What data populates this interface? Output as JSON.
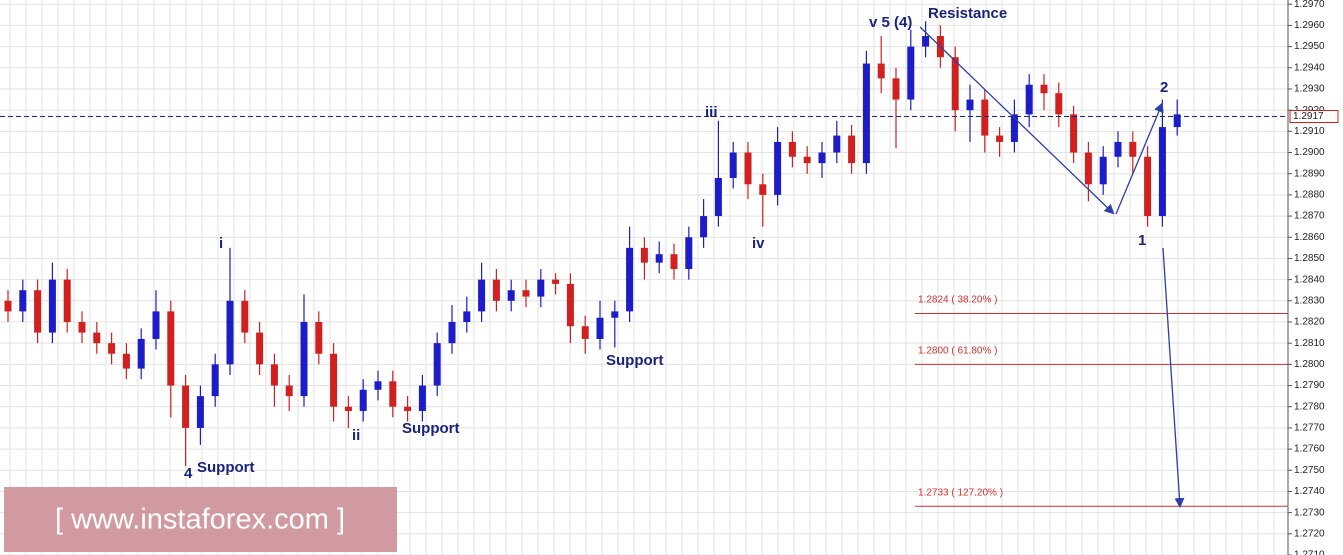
{
  "chart_data": {
    "type": "candlestick",
    "open": [
      1.283,
      1.2825,
      1.2835,
      1.2815,
      1.284,
      1.282,
      1.2815,
      1.281,
      1.2805,
      1.2798,
      1.2812,
      1.2825,
      1.279,
      1.277,
      1.2785,
      1.28,
      1.283,
      1.2815,
      1.28,
      1.279,
      1.2785,
      1.282,
      1.2805,
      1.278,
      1.2778,
      1.2788,
      1.2792,
      1.278,
      1.2778,
      1.279,
      1.281,
      1.282,
      1.2825,
      1.284,
      1.283,
      1.2835,
      1.2832,
      1.284,
      1.2838,
      1.2818,
      1.2812,
      1.2822,
      1.2825,
      1.2855,
      1.2848,
      1.2852,
      1.2845,
      1.286,
      1.287,
      1.2888,
      1.29,
      1.2885,
      1.288,
      1.2905,
      1.2898,
      1.2895,
      1.29,
      1.2908,
      1.2895,
      1.2942,
      1.2935,
      1.2925,
      1.295,
      1.2955,
      1.2945,
      1.292,
      1.2925,
      1.2908,
      1.2905,
      1.2918,
      1.2932,
      1.2928,
      1.2918,
      1.29,
      1.2885,
      1.2898,
      1.2905,
      1.2898,
      1.287,
      1.2912
    ],
    "high": [
      1.2835,
      1.284,
      1.284,
      1.2848,
      1.2845,
      1.2825,
      1.282,
      1.2815,
      1.281,
      1.2817,
      1.2835,
      1.283,
      1.2795,
      1.279,
      1.2805,
      1.2855,
      1.2835,
      1.282,
      1.2805,
      1.2795,
      1.2833,
      1.2825,
      1.281,
      1.2785,
      1.2793,
      1.2797,
      1.2797,
      1.2785,
      1.2795,
      1.2815,
      1.2828,
      1.2832,
      1.2848,
      1.2845,
      1.284,
      1.284,
      1.2845,
      1.2843,
      1.2843,
      1.2823,
      1.283,
      1.283,
      1.2865,
      1.286,
      1.2858,
      1.2857,
      1.2865,
      1.2878,
      1.2915,
      1.2905,
      1.2905,
      1.289,
      1.2912,
      1.291,
      1.2903,
      1.2905,
      1.2915,
      1.2913,
      1.2948,
      1.2955,
      1.294,
      1.2958,
      1.2962,
      1.296,
      1.295,
      1.2932,
      1.293,
      1.2912,
      1.2925,
      1.2937,
      1.2937,
      1.2933,
      1.2922,
      1.2905,
      1.2903,
      1.291,
      1.291,
      1.2903,
      1.2925,
      1.2925
    ],
    "low": [
      1.282,
      1.282,
      1.281,
      1.281,
      1.2815,
      1.281,
      1.2805,
      1.28,
      1.2793,
      1.2793,
      1.2807,
      1.2775,
      1.2752,
      1.2762,
      1.278,
      1.2795,
      1.281,
      1.2795,
      1.278,
      1.2778,
      1.278,
      1.28,
      1.2773,
      1.277,
      1.2773,
      1.2783,
      1.2775,
      1.2773,
      1.2773,
      1.2785,
      1.2805,
      1.2815,
      1.282,
      1.2825,
      1.2825,
      1.2827,
      1.2827,
      1.2833,
      1.281,
      1.2805,
      1.2807,
      1.2808,
      1.282,
      1.284,
      1.2843,
      1.284,
      1.284,
      1.2855,
      1.2865,
      1.2883,
      1.2878,
      1.2865,
      1.2875,
      1.2893,
      1.289,
      1.2888,
      1.2895,
      1.289,
      1.289,
      1.2928,
      1.2902,
      1.292,
      1.2945,
      1.294,
      1.291,
      1.2905,
      1.29,
      1.2898,
      1.29,
      1.2912,
      1.292,
      1.2912,
      1.2895,
      1.2877,
      1.288,
      1.2893,
      1.289,
      1.2865,
      1.2865,
      1.2908
    ],
    "close": [
      1.2825,
      1.2835,
      1.2815,
      1.284,
      1.282,
      1.2815,
      1.281,
      1.2805,
      1.2798,
      1.2812,
      1.2825,
      1.279,
      1.277,
      1.2785,
      1.28,
      1.283,
      1.2815,
      1.28,
      1.279,
      1.2785,
      1.282,
      1.2805,
      1.278,
      1.2778,
      1.2788,
      1.2792,
      1.278,
      1.2778,
      1.279,
      1.281,
      1.282,
      1.2825,
      1.284,
      1.283,
      1.2835,
      1.2832,
      1.284,
      1.2838,
      1.2818,
      1.2812,
      1.2822,
      1.2825,
      1.2855,
      1.2848,
      1.2852,
      1.2845,
      1.286,
      1.287,
      1.2888,
      1.29,
      1.2885,
      1.288,
      1.2905,
      1.2898,
      1.2895,
      1.29,
      1.2908,
      1.2895,
      1.2942,
      1.2935,
      1.2925,
      1.295,
      1.2955,
      1.2945,
      1.292,
      1.2925,
      1.2908,
      1.2905,
      1.2918,
      1.2932,
      1.2928,
      1.2918,
      1.29,
      1.2885,
      1.2898,
      1.2905,
      1.2898,
      1.287,
      1.2912,
      1.2918
    ],
    "up_color": "#1c1cc8",
    "down_color": "#d02020",
    "ylim": [
      1.271,
      1.2972
    ],
    "yticks": [
      {
        "value": 1.271,
        "label": "1.2710"
      },
      {
        "value": 1.272,
        "label": "1.2720"
      },
      {
        "value": 1.273,
        "label": "1.2730"
      },
      {
        "value": 1.274,
        "label": "1.2740"
      },
      {
        "value": 1.275,
        "label": "1.2750"
      },
      {
        "value": 1.276,
        "label": "1.2760"
      },
      {
        "value": 1.277,
        "label": "1.2770"
      },
      {
        "value": 1.278,
        "label": "1.2780"
      },
      {
        "value": 1.279,
        "label": "1.2790"
      },
      {
        "value": 1.28,
        "label": "1.2800"
      },
      {
        "value": 1.281,
        "label": "1.2810"
      },
      {
        "value": 1.282,
        "label": "1.2820"
      },
      {
        "value": 1.283,
        "label": "1.2830"
      },
      {
        "value": 1.284,
        "label": "1.2840"
      },
      {
        "value": 1.285,
        "label": "1.2850"
      },
      {
        "value": 1.286,
        "label": "1.2860"
      },
      {
        "value": 1.287,
        "label": "1.2870"
      },
      {
        "value": 1.288,
        "label": "1.2880"
      },
      {
        "value": 1.289,
        "label": "1.2890"
      },
      {
        "value": 1.29,
        "label": "1.2900"
      },
      {
        "value": 1.291,
        "label": "1.2910"
      },
      {
        "value": 1.292,
        "label": "1.2920"
      },
      {
        "value": 1.293,
        "label": "1.2930"
      },
      {
        "value": 1.294,
        "label": "1.2940"
      },
      {
        "value": 1.295,
        "label": "1.2950"
      },
      {
        "value": 1.296,
        "label": "1.2960"
      },
      {
        "value": 1.297,
        "label": "1.2970"
      }
    ],
    "grid": true,
    "current_price": {
      "value": 1.2917,
      "label": "1.2917"
    },
    "levels": [
      {
        "value": 1.2824,
        "label": "1.2824 ( 38.20% )"
      },
      {
        "value": 1.28,
        "label": "1.2800 ( 61.80% )"
      },
      {
        "value": 1.2733,
        "label": "1.2733 ( 127.20% )"
      }
    ],
    "level_color": "#d03030",
    "annotations": [
      "v 5 (4)",
      "Resistance",
      "iii",
      "i",
      "iv",
      "ii",
      "Support",
      "Support",
      "4",
      "Support",
      "1",
      "2"
    ],
    "watermark": "[ www.instaforex.com ]"
  }
}
